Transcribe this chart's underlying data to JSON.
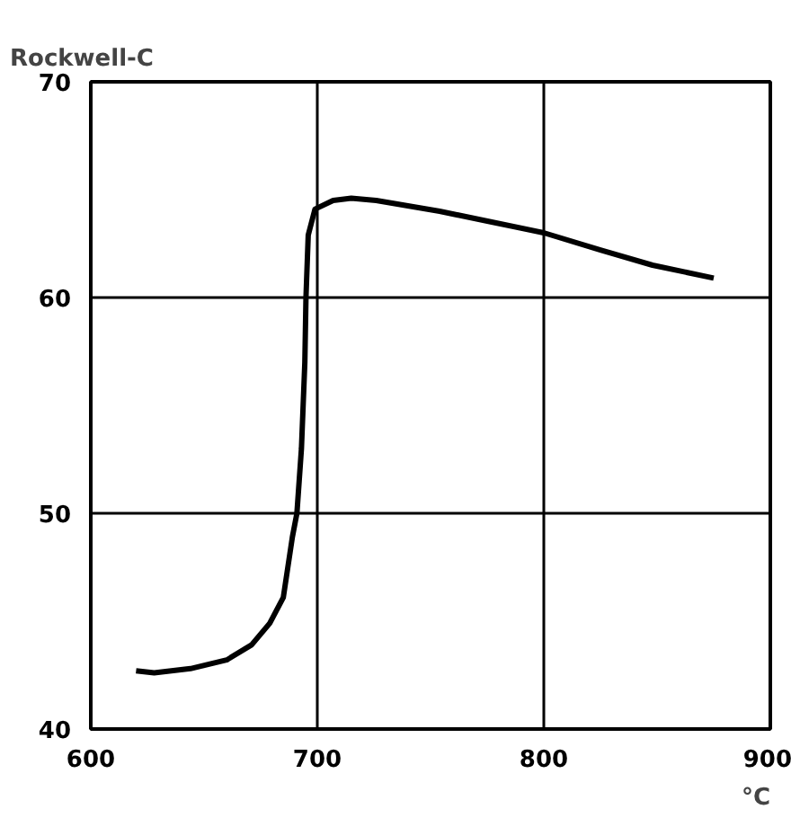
{
  "chart_data": {
    "type": "line",
    "ylabel": "Rockwell-C",
    "xlabel": "°C",
    "xlim": [
      600,
      900
    ],
    "ylim": [
      40,
      70
    ],
    "xticks": [
      600,
      700,
      800,
      900
    ],
    "yticks": [
      40,
      50,
      60,
      70
    ],
    "grid": true,
    "series": [
      {
        "color": "#000000",
        "x": [
          620,
          628,
          644,
          660,
          671,
          679,
          685,
          689,
          691,
          693,
          694.5,
          695,
          696,
          699,
          707,
          715,
          726,
          754,
          777,
          800,
          825,
          848,
          875
        ],
        "values": [
          42.7,
          42.6,
          42.8,
          43.2,
          43.9,
          44.9,
          46.1,
          48.9,
          50,
          53,
          57,
          60,
          62.9,
          64.1,
          64.5,
          64.6,
          64.5,
          64.0,
          63.5,
          63.0,
          62.2,
          61.5,
          60.9
        ]
      }
    ]
  }
}
